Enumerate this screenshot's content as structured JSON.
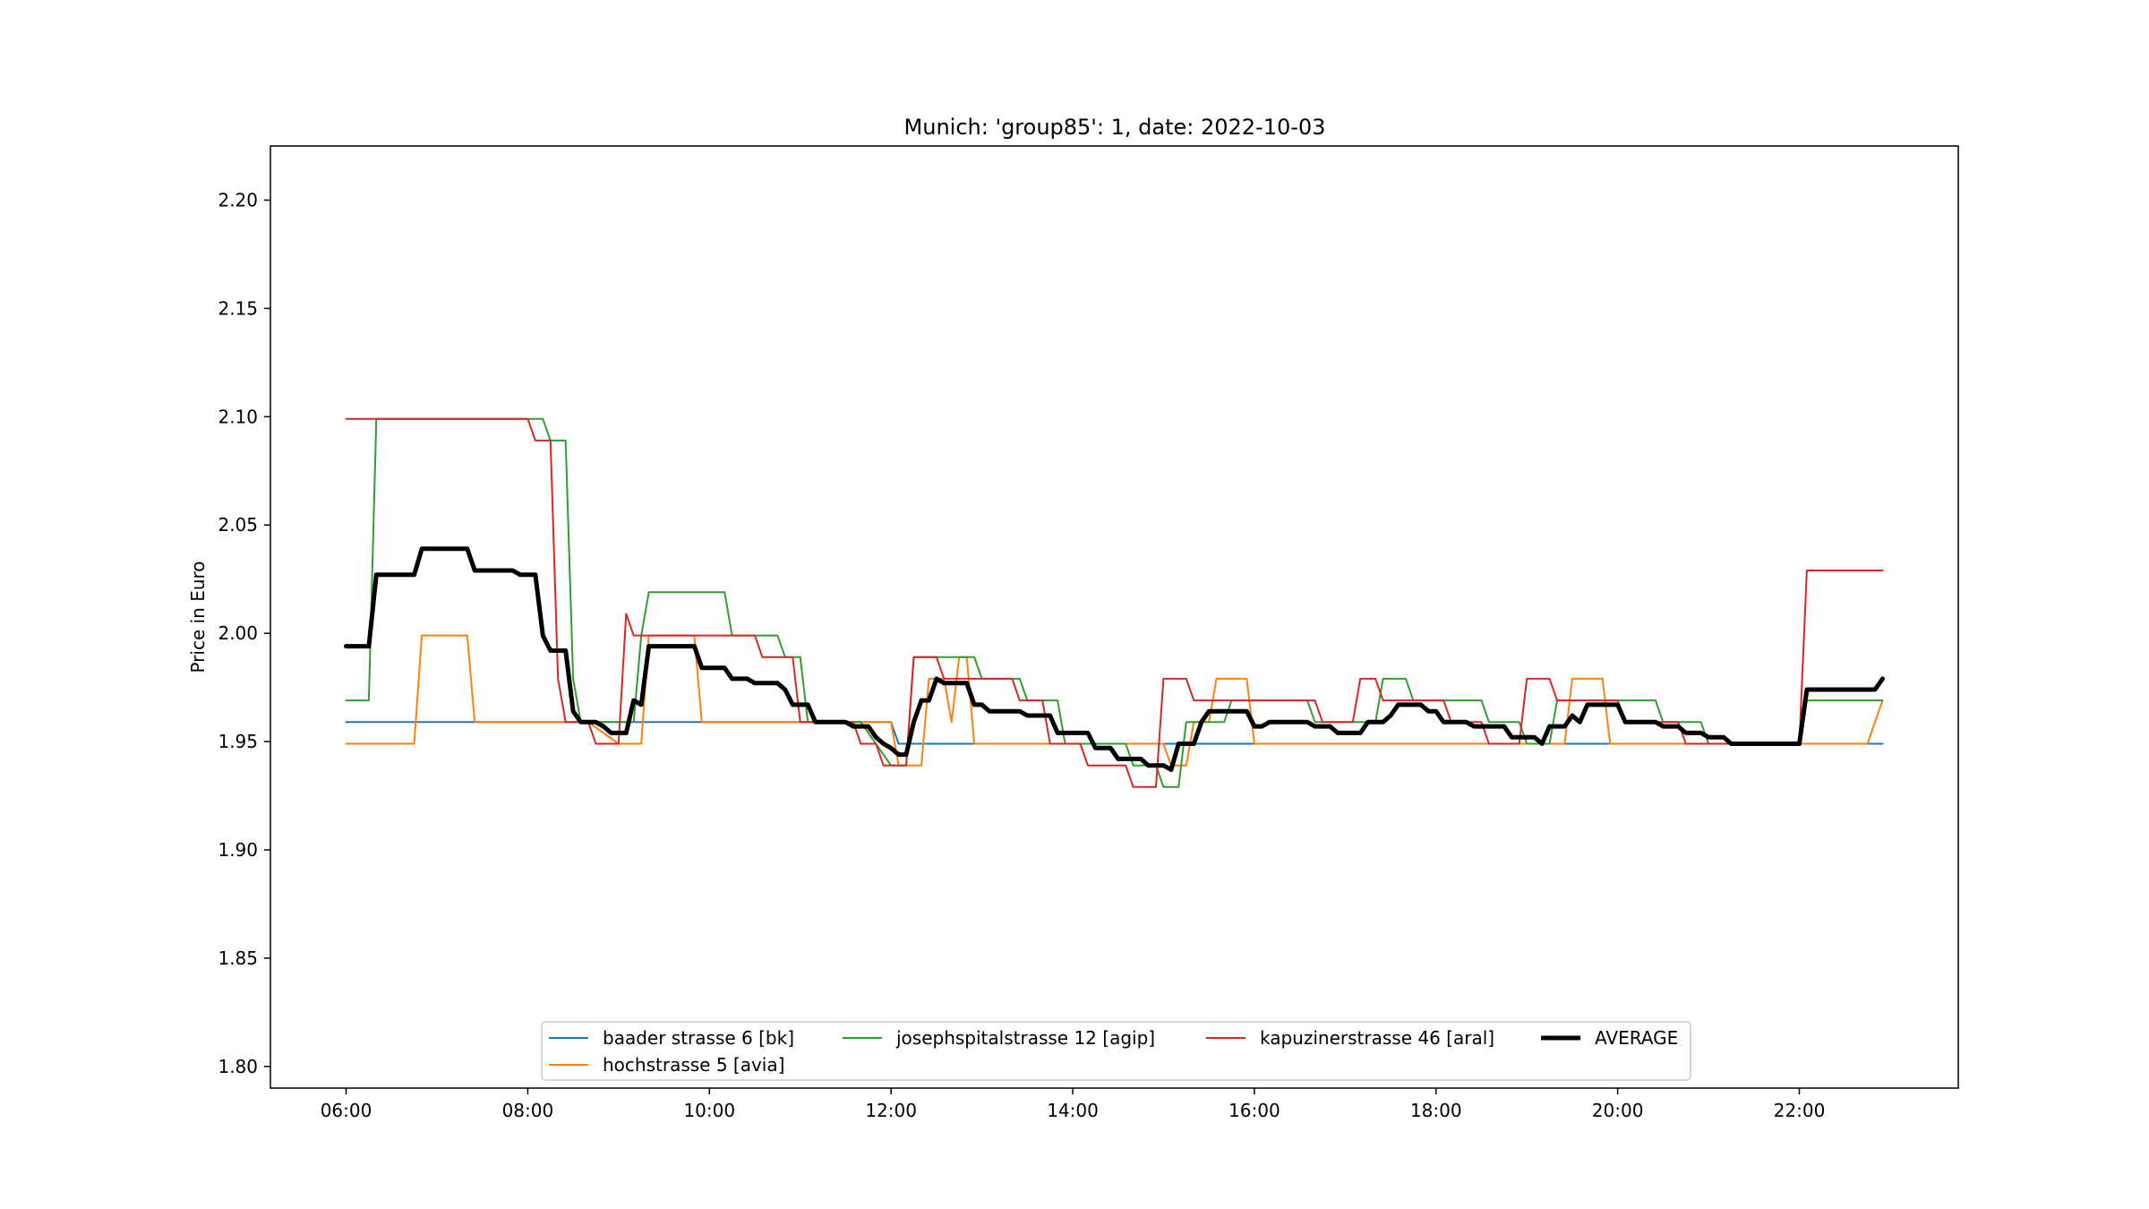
{
  "chart_data": {
    "type": "line",
    "title": "Munich: 'group85': 1, date: 2022-10-03",
    "xlabel": "",
    "ylabel": "Price in Euro",
    "xlim": [
      "05:10",
      "23:45"
    ],
    "ylim": [
      1.79,
      2.225
    ],
    "x_ticks": [
      "06:00",
      "08:00",
      "10:00",
      "12:00",
      "14:00",
      "16:00",
      "18:00",
      "20:00",
      "22:00"
    ],
    "y_ticks": [
      "1.80",
      "1.85",
      "1.90",
      "1.95",
      "2.00",
      "2.05",
      "2.10",
      "2.15",
      "2.20"
    ],
    "grid": false,
    "legend_position": "lower center",
    "series": [
      {
        "name": "baader strasse 6 [bk]",
        "color": "#1f77b4",
        "width": 2,
        "points": [
          [
            "06:00",
            1.959
          ],
          [
            "12:00",
            1.959
          ],
          [
            "12:05",
            1.949
          ],
          [
            "22:55",
            1.949
          ]
        ]
      },
      {
        "name": "hochstrasse 5 [avia]",
        "color": "#ff7f0e",
        "width": 2,
        "points": [
          [
            "06:00",
            1.949
          ],
          [
            "06:45",
            1.949
          ],
          [
            "06:50",
            1.999
          ],
          [
            "07:20",
            1.999
          ],
          [
            "07:25",
            1.959
          ],
          [
            "08:40",
            1.959
          ],
          [
            "09:00",
            1.949
          ],
          [
            "09:15",
            1.949
          ],
          [
            "09:20",
            1.999
          ],
          [
            "09:50",
            1.999
          ],
          [
            "09:55",
            1.959
          ],
          [
            "11:40",
            1.959
          ],
          [
            "12:00",
            1.959
          ],
          [
            "12:05",
            1.939
          ],
          [
            "12:20",
            1.939
          ],
          [
            "12:25",
            1.979
          ],
          [
            "12:35",
            1.979
          ],
          [
            "12:40",
            1.959
          ],
          [
            "12:45",
            1.989
          ],
          [
            "12:50",
            1.989
          ],
          [
            "12:55",
            1.949
          ],
          [
            "15:00",
            1.949
          ],
          [
            "15:05",
            1.939
          ],
          [
            "15:15",
            1.939
          ],
          [
            "15:20",
            1.959
          ],
          [
            "15:30",
            1.959
          ],
          [
            "15:35",
            1.979
          ],
          [
            "15:55",
            1.979
          ],
          [
            "16:00",
            1.949
          ],
          [
            "19:25",
            1.949
          ],
          [
            "19:30",
            1.979
          ],
          [
            "19:50",
            1.979
          ],
          [
            "19:55",
            1.949
          ],
          [
            "22:45",
            1.949
          ],
          [
            "22:55",
            1.969
          ]
        ]
      },
      {
        "name": "josephspitalstrasse 12 [agip]",
        "color": "#2ca02c",
        "width": 2,
        "points": [
          [
            "06:00",
            1.969
          ],
          [
            "06:15",
            1.969
          ],
          [
            "06:20",
            2.099
          ],
          [
            "08:10",
            2.099
          ],
          [
            "08:15",
            2.089
          ],
          [
            "08:25",
            2.089
          ],
          [
            "08:30",
            1.979
          ],
          [
            "08:35",
            1.959
          ],
          [
            "09:10",
            1.959
          ],
          [
            "09:15",
            1.999
          ],
          [
            "09:20",
            2.019
          ],
          [
            "10:10",
            2.019
          ],
          [
            "10:15",
            1.999
          ],
          [
            "10:45",
            1.999
          ],
          [
            "10:50",
            1.989
          ],
          [
            "11:00",
            1.989
          ],
          [
            "11:05",
            1.959
          ],
          [
            "11:40",
            1.959
          ],
          [
            "12:00",
            1.939
          ],
          [
            "12:10",
            1.939
          ],
          [
            "12:15",
            1.989
          ],
          [
            "12:55",
            1.989
          ],
          [
            "13:00",
            1.979
          ],
          [
            "13:25",
            1.979
          ],
          [
            "13:30",
            1.969
          ],
          [
            "13:50",
            1.969
          ],
          [
            "13:55",
            1.949
          ],
          [
            "14:35",
            1.949
          ],
          [
            "14:40",
            1.939
          ],
          [
            "14:55",
            1.939
          ],
          [
            "15:00",
            1.929
          ],
          [
            "15:10",
            1.929
          ],
          [
            "15:15",
            1.959
          ],
          [
            "15:40",
            1.959
          ],
          [
            "15:45",
            1.969
          ],
          [
            "16:35",
            1.969
          ],
          [
            "16:40",
            1.959
          ],
          [
            "17:20",
            1.959
          ],
          [
            "17:25",
            1.979
          ],
          [
            "17:40",
            1.979
          ],
          [
            "17:45",
            1.969
          ],
          [
            "18:30",
            1.969
          ],
          [
            "18:35",
            1.959
          ],
          [
            "18:55",
            1.959
          ],
          [
            "19:00",
            1.949
          ],
          [
            "19:15",
            1.949
          ],
          [
            "19:20",
            1.969
          ],
          [
            "20:25",
            1.969
          ],
          [
            "20:30",
            1.959
          ],
          [
            "20:55",
            1.959
          ],
          [
            "21:00",
            1.949
          ],
          [
            "22:00",
            1.949
          ],
          [
            "22:05",
            1.969
          ],
          [
            "22:55",
            1.969
          ]
        ]
      },
      {
        "name": "kapuzinerstrasse 46 [aral]",
        "color": "#d62728",
        "width": 2,
        "points": [
          [
            "06:00",
            2.099
          ],
          [
            "08:00",
            2.099
          ],
          [
            "08:05",
            2.089
          ],
          [
            "08:15",
            2.089
          ],
          [
            "08:20",
            1.979
          ],
          [
            "08:25",
            1.959
          ],
          [
            "08:40",
            1.959
          ],
          [
            "08:45",
            1.949
          ],
          [
            "09:00",
            1.949
          ],
          [
            "09:05",
            2.009
          ],
          [
            "09:10",
            1.999
          ],
          [
            "10:20",
            1.999
          ],
          [
            "10:30",
            1.999
          ],
          [
            "10:35",
            1.989
          ],
          [
            "10:55",
            1.989
          ],
          [
            "11:00",
            1.959
          ],
          [
            "11:35",
            1.959
          ],
          [
            "11:40",
            1.949
          ],
          [
            "11:50",
            1.949
          ],
          [
            "11:55",
            1.939
          ],
          [
            "12:10",
            1.939
          ],
          [
            "12:15",
            1.989
          ],
          [
            "12:30",
            1.989
          ],
          [
            "12:35",
            1.979
          ],
          [
            "13:20",
            1.979
          ],
          [
            "13:25",
            1.969
          ],
          [
            "13:40",
            1.969
          ],
          [
            "13:45",
            1.949
          ],
          [
            "14:05",
            1.949
          ],
          [
            "14:10",
            1.939
          ],
          [
            "14:30",
            1.939
          ],
          [
            "14:35",
            1.939
          ],
          [
            "14:40",
            1.929
          ],
          [
            "14:55",
            1.929
          ],
          [
            "15:00",
            1.979
          ],
          [
            "15:15",
            1.979
          ],
          [
            "15:20",
            1.969
          ],
          [
            "16:40",
            1.969
          ],
          [
            "16:45",
            1.959
          ],
          [
            "17:05",
            1.959
          ],
          [
            "17:10",
            1.979
          ],
          [
            "17:20",
            1.979
          ],
          [
            "17:25",
            1.969
          ],
          [
            "18:05",
            1.969
          ],
          [
            "18:10",
            1.959
          ],
          [
            "18:30",
            1.959
          ],
          [
            "18:35",
            1.949
          ],
          [
            "18:55",
            1.949
          ],
          [
            "19:00",
            1.979
          ],
          [
            "19:15",
            1.979
          ],
          [
            "19:20",
            1.969
          ],
          [
            "20:00",
            1.969
          ],
          [
            "20:05",
            1.959
          ],
          [
            "20:40",
            1.959
          ],
          [
            "20:45",
            1.949
          ],
          [
            "22:00",
            1.949
          ],
          [
            "22:05",
            2.029
          ],
          [
            "22:55",
            2.029
          ]
        ]
      },
      {
        "name": "AVERAGE",
        "color": "#000000",
        "width": 5,
        "points": [
          [
            "06:00",
            1.994
          ],
          [
            "06:15",
            1.994
          ],
          [
            "06:20",
            2.027
          ],
          [
            "06:45",
            2.027
          ],
          [
            "06:50",
            2.039
          ],
          [
            "07:20",
            2.039
          ],
          [
            "07:25",
            2.029
          ],
          [
            "07:50",
            2.029
          ],
          [
            "07:55",
            2.027
          ],
          [
            "08:05",
            2.027
          ],
          [
            "08:10",
            1.999
          ],
          [
            "08:15",
            1.992
          ],
          [
            "08:25",
            1.992
          ],
          [
            "08:30",
            1.964
          ],
          [
            "08:35",
            1.959
          ],
          [
            "08:45",
            1.959
          ],
          [
            "08:50",
            1.957
          ],
          [
            "08:55",
            1.954
          ],
          [
            "09:05",
            1.954
          ],
          [
            "09:10",
            1.969
          ],
          [
            "09:15",
            1.967
          ],
          [
            "09:20",
            1.994
          ],
          [
            "09:50",
            1.994
          ],
          [
            "09:55",
            1.984
          ],
          [
            "10:10",
            1.984
          ],
          [
            "10:15",
            1.979
          ],
          [
            "10:25",
            1.979
          ],
          [
            "10:30",
            1.977
          ],
          [
            "10:45",
            1.977
          ],
          [
            "10:50",
            1.974
          ],
          [
            "10:55",
            1.967
          ],
          [
            "11:05",
            1.967
          ],
          [
            "11:10",
            1.959
          ],
          [
            "11:30",
            1.959
          ],
          [
            "11:35",
            1.957
          ],
          [
            "11:45",
            1.957
          ],
          [
            "11:50",
            1.952
          ],
          [
            "11:55",
            1.949
          ],
          [
            "12:00",
            1.947
          ],
          [
            "12:05",
            1.944
          ],
          [
            "12:10",
            1.944
          ],
          [
            "12:15",
            1.959
          ],
          [
            "12:20",
            1.969
          ],
          [
            "12:25",
            1.969
          ],
          [
            "12:30",
            1.979
          ],
          [
            "12:35",
            1.977
          ],
          [
            "12:50",
            1.977
          ],
          [
            "12:55",
            1.967
          ],
          [
            "13:00",
            1.967
          ],
          [
            "13:05",
            1.964
          ],
          [
            "13:25",
            1.964
          ],
          [
            "13:30",
            1.962
          ],
          [
            "13:45",
            1.962
          ],
          [
            "13:50",
            1.954
          ],
          [
            "14:10",
            1.954
          ],
          [
            "14:15",
            1.947
          ],
          [
            "14:25",
            1.947
          ],
          [
            "14:30",
            1.942
          ],
          [
            "14:45",
            1.942
          ],
          [
            "14:50",
            1.939
          ],
          [
            "15:00",
            1.939
          ],
          [
            "15:05",
            1.937
          ],
          [
            "15:10",
            1.949
          ],
          [
            "15:20",
            1.949
          ],
          [
            "15:25",
            1.959
          ],
          [
            "15:30",
            1.964
          ],
          [
            "15:55",
            1.964
          ],
          [
            "16:00",
            1.957
          ],
          [
            "16:05",
            1.957
          ],
          [
            "16:10",
            1.959
          ],
          [
            "16:35",
            1.959
          ],
          [
            "16:40",
            1.957
          ],
          [
            "16:50",
            1.957
          ],
          [
            "16:55",
            1.954
          ],
          [
            "17:10",
            1.954
          ],
          [
            "17:15",
            1.959
          ],
          [
            "17:25",
            1.959
          ],
          [
            "17:30",
            1.962
          ],
          [
            "17:35",
            1.967
          ],
          [
            "17:50",
            1.967
          ],
          [
            "17:55",
            1.964
          ],
          [
            "18:00",
            1.964
          ],
          [
            "18:05",
            1.959
          ],
          [
            "18:20",
            1.959
          ],
          [
            "18:25",
            1.957
          ],
          [
            "18:45",
            1.957
          ],
          [
            "18:50",
            1.952
          ],
          [
            "19:05",
            1.952
          ],
          [
            "19:10",
            1.949
          ],
          [
            "19:15",
            1.957
          ],
          [
            "19:25",
            1.957
          ],
          [
            "19:30",
            1.962
          ],
          [
            "19:35",
            1.959
          ],
          [
            "19:40",
            1.967
          ],
          [
            "20:00",
            1.967
          ],
          [
            "20:05",
            1.959
          ],
          [
            "20:25",
            1.959
          ],
          [
            "20:30",
            1.957
          ],
          [
            "20:40",
            1.957
          ],
          [
            "20:45",
            1.954
          ],
          [
            "20:55",
            1.954
          ],
          [
            "21:00",
            1.952
          ],
          [
            "21:10",
            1.952
          ],
          [
            "21:15",
            1.949
          ],
          [
            "22:00",
            1.949
          ],
          [
            "22:05",
            1.974
          ],
          [
            "22:50",
            1.974
          ],
          [
            "22:55",
            1.979
          ]
        ]
      }
    ],
    "legend_layout": [
      [
        "baader strasse 6 [bk]",
        "josephspitalstrasse 12 [agip]",
        "kapuzinerstrasse 46 [aral]",
        "AVERAGE"
      ],
      [
        "hochstrasse 5 [avia]"
      ]
    ]
  }
}
